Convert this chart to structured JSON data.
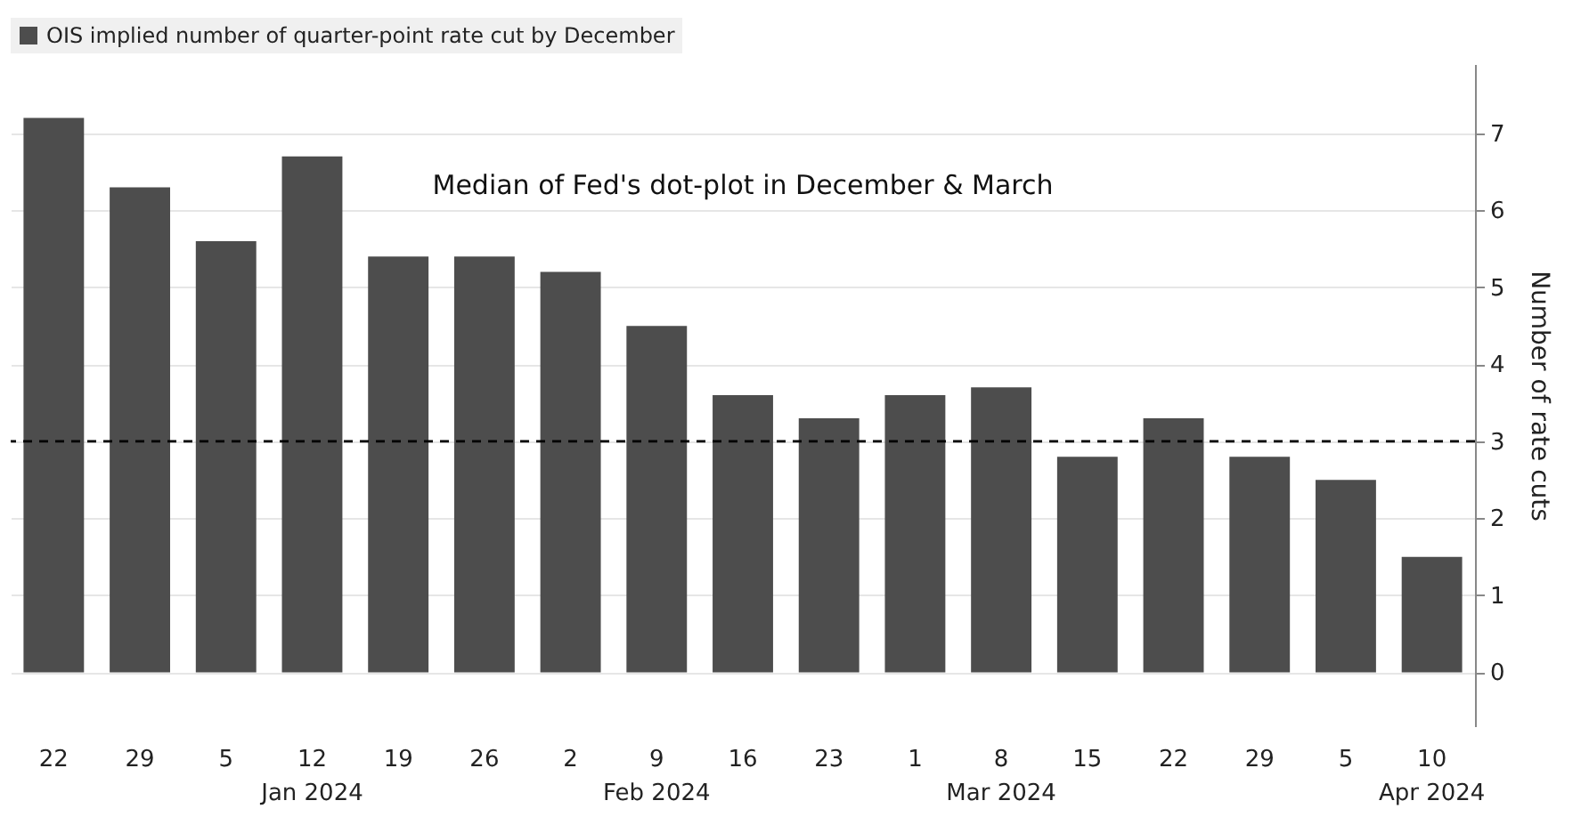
{
  "chart_data": {
    "type": "bar",
    "ylabel": "Number of rate cuts",
    "categories": [
      "22",
      "29",
      "5",
      "12\nJan 2024",
      "19",
      "26",
      "2",
      "9\nFeb 2024",
      "16",
      "23",
      "1",
      "8\nMar 2024",
      "15",
      "22",
      "29",
      "5",
      "10\nApr 2024"
    ],
    "series": [
      {
        "name": "OIS implied number of quarter-point rate cut by December",
        "color": "#4d4d4d",
        "values": [
          7.2,
          6.3,
          5.6,
          6.7,
          5.4,
          5.4,
          5.2,
          4.5,
          3.6,
          3.3,
          3.6,
          3.7,
          2.8,
          3.3,
          2.8,
          2.5,
          1.5
        ]
      }
    ],
    "ylim": [
      -0.7,
      7.9
    ],
    "yticks": [
      0,
      1,
      2,
      3,
      4,
      5,
      6,
      7
    ],
    "ref_lines": [
      {
        "axis": "y",
        "value": 3,
        "label": "Median of Fed's dot-plot in December & March",
        "color": "#000000",
        "line_style": "dashed"
      }
    ],
    "grid": "y",
    "legend": "top left"
  }
}
